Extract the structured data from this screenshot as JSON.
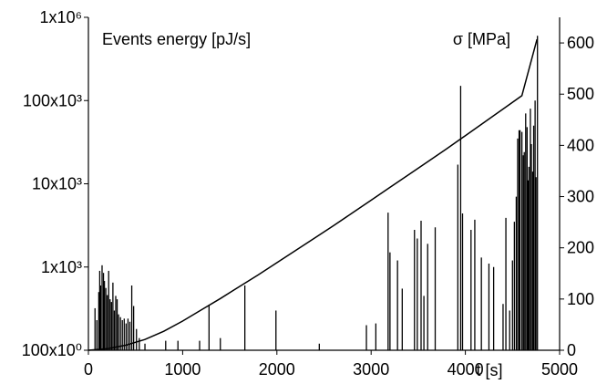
{
  "chart_data": {
    "type": "bar",
    "title": "",
    "left_axis_label": "Events energy [pJ/s]",
    "right_axis_label": "σ [MPa]",
    "x_axis_label": "t [s]",
    "x_range": [
      0,
      5000
    ],
    "x_ticks": [
      0,
      1000,
      2000,
      3000,
      4000,
      5000
    ],
    "x_tick_labels": [
      "0",
      "1000",
      "2000",
      "3000",
      "4000",
      "5000"
    ],
    "y_left_scale": "log",
    "y_left_range": [
      100,
      1000000
    ],
    "y_left_ticks": [
      100,
      1000,
      10000,
      100000,
      1000000
    ],
    "y_left_tick_labels": [
      "100x10⁰",
      "1x10³",
      "10x10³",
      "100x10³",
      "1x10⁶"
    ],
    "y_right_range": [
      0,
      650
    ],
    "y_right_ticks": [
      0,
      100,
      200,
      300,
      400,
      500,
      600
    ],
    "y_right_tick_labels": [
      "0",
      "100",
      "200",
      "300",
      "400",
      "500",
      "600"
    ],
    "grid": false,
    "legend": "none",
    "colors": {
      "line": "#000000",
      "bars": "#000000"
    },
    "series": [
      {
        "type": "bar",
        "axis": "left",
        "x": [
          70,
          90,
          110,
          120,
          130,
          145,
          160,
          170,
          185,
          200,
          215,
          230,
          245,
          260,
          275,
          290,
          305,
          320,
          340,
          360,
          380,
          400,
          420,
          440,
          460,
          480,
          510,
          540,
          600,
          820,
          950,
          1180,
          1280,
          1400,
          1660,
          1990,
          2450,
          2950,
          3050,
          3180,
          3200,
          3280,
          3330,
          3460,
          3490,
          3530,
          3560,
          3600,
          3680,
          3920,
          3950,
          3970,
          4060,
          4100,
          4170,
          4250,
          4300,
          4400,
          4430,
          4470,
          4500,
          4520,
          4540,
          4555,
          4570,
          4580,
          4600,
          4615,
          4625,
          4640,
          4655,
          4665,
          4675,
          4690,
          4700,
          4715,
          4725,
          4740,
          4750,
          4765
        ],
        "values": [
          320,
          230,
          500,
          900,
          600,
          1050,
          850,
          680,
          560,
          460,
          900,
          410,
          380,
          650,
          300,
          450,
          410,
          270,
          250,
          230,
          240,
          210,
          240,
          220,
          600,
          340,
          180,
          140,
          120,
          130,
          130,
          130,
          350,
          140,
          600,
          300,
          120,
          200,
          210,
          4500,
          1500,
          1200,
          550,
          2800,
          2200,
          3600,
          450,
          1900,
          3000,
          17000,
          150000,
          4400,
          2800,
          3700,
          1300,
          1100,
          1000,
          360,
          3900,
          300,
          1200,
          3500,
          7000,
          35000,
          44000,
          44000,
          42000,
          22000,
          24000,
          70000,
          48000,
          11000,
          16000,
          80000,
          30000,
          14000,
          50000,
          100000,
          12000,
          600000
        ]
      },
      {
        "type": "line",
        "axis": "right",
        "x": [
          0,
          200,
          400,
          600,
          800,
          1000,
          1200,
          1400,
          1600,
          1800,
          2000,
          2200,
          2400,
          2600,
          2800,
          3000,
          3200,
          3400,
          3600,
          3800,
          4000,
          4200,
          4400,
          4600,
          4760
        ],
        "values": [
          0,
          3,
          10,
          21,
          37,
          57,
          79,
          101,
          124,
          147,
          171,
          195,
          219,
          243,
          268,
          293,
          318,
          343,
          368,
          393,
          419,
          445,
          471,
          497,
          607
        ]
      }
    ]
  }
}
